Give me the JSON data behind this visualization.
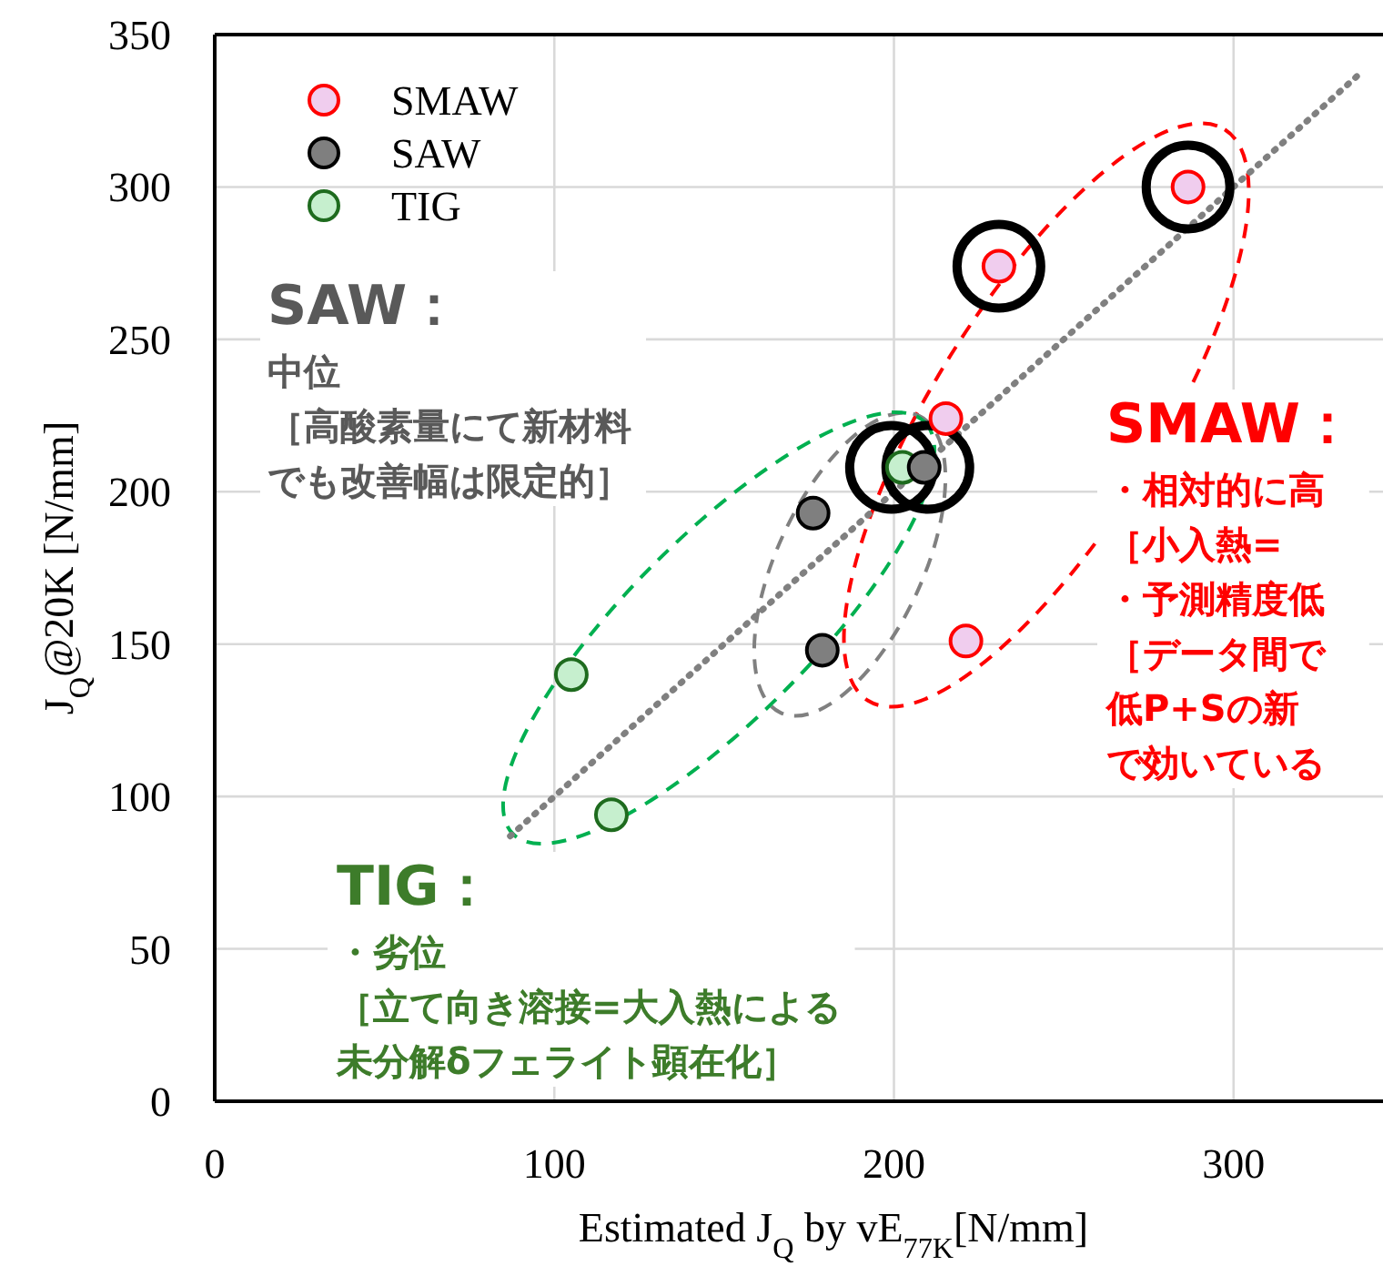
{
  "chart_data": {
    "type": "scatter",
    "xlabel": "Estimated  J$_{Q}$ by vE$_{77K}$[N/mm]",
    "ylabel": "J$_{Q}$@20K [N/mm]",
    "xlim": [
      0,
      344
    ],
    "ylim": [
      0,
      350
    ],
    "xticks": [
      0,
      100,
      200,
      300
    ],
    "yticks": [
      0,
      50,
      100,
      150,
      200,
      250,
      300,
      350
    ],
    "grid": true,
    "legend": "top left",
    "marker": "circle",
    "series": [
      {
        "name": "SMAW",
        "color": "#f0cdee",
        "x": [
          286.6,
          230.9,
          215.3,
          221.2
        ],
        "values": [
          300,
          274,
          224,
          151
        ]
      },
      {
        "name": "SAW",
        "color": "#7f7f7f",
        "x": [
          176.2,
          178.9,
          208.9
        ],
        "values": [
          193,
          148,
          208
        ]
      },
      {
        "name": "TIG",
        "color": "#c6efce",
        "x": [
          105,
          116.8,
          202.5
        ],
        "values": [
          140,
          94,
          208
        ]
      },
      {
        "type": "line",
        "color": "#808080",
        "line_style": "dotted",
        "marker": "none",
        "x": [
          87,
          337
        ],
        "values": [
          87,
          337
        ]
      }
    ],
    "annotations": [
      "SAW：",
      "中位",
      "［高酸素量にて新材料",
      "でも改善幅は限定的］",
      "TIG：",
      "・劣位",
      "［立て向き溶接=大入熱による",
      "未分解δフェライト顕在化］",
      "SMAW：",
      "・相対的に高",
      "［小入熱=",
      "・予測精度低",
      "［データ間で",
      "低P+Sの新",
      "で効いている"
    ]
  }
}
